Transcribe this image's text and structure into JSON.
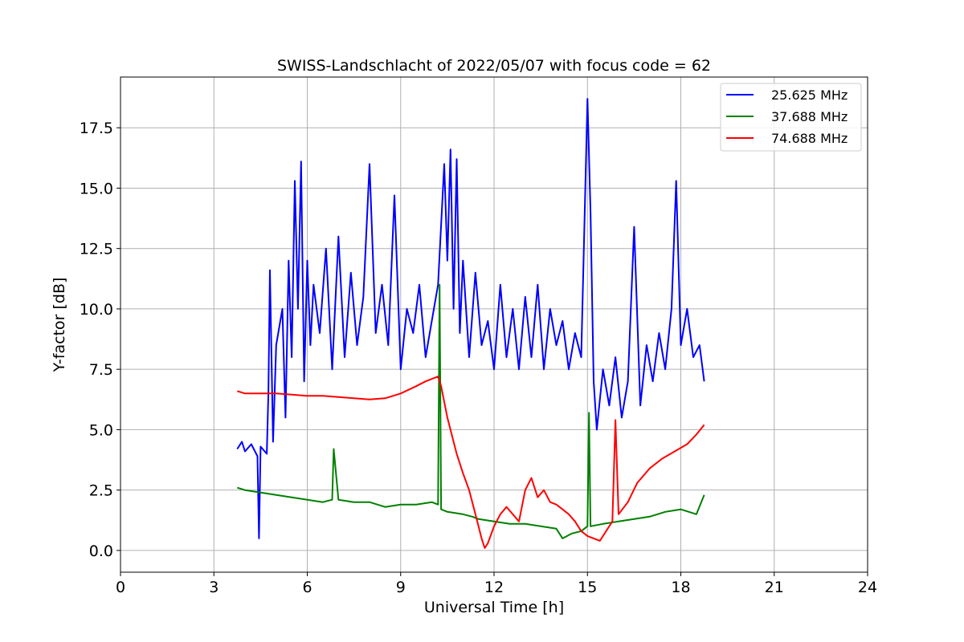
{
  "chart_data": {
    "type": "line",
    "title": "SWISS-Landschlacht of 2022/05/07 with focus code = 62",
    "xlabel": "Universal Time [h]",
    "ylabel": "Y-factor [dB]",
    "xlim": [
      0,
      24
    ],
    "ylim": [
      -0.9,
      19.6
    ],
    "xticks": [
      0,
      3,
      6,
      9,
      12,
      15,
      18,
      21,
      24
    ],
    "xtick_labels": [
      "0",
      "3",
      "6",
      "9",
      "12",
      "15",
      "18",
      "21",
      "24"
    ],
    "yticks": [
      0,
      2.5,
      5,
      7.5,
      10,
      12.5,
      15,
      17.5
    ],
    "ytick_labels": [
      "0.0",
      "2.5",
      "5.0",
      "7.5",
      "10.0",
      "12.5",
      "15.0",
      "17.5"
    ],
    "grid": true,
    "legend_position": "top-right",
    "series": [
      {
        "name": "25.625 MHz",
        "color": "#0000ff",
        "x": [
          3.75,
          3.9,
          4.0,
          4.2,
          4.4,
          4.45,
          4.5,
          4.7,
          4.75,
          4.8,
          4.9,
          5.0,
          5.2,
          5.3,
          5.4,
          5.5,
          5.6,
          5.7,
          5.8,
          5.9,
          6.0,
          6.1,
          6.2,
          6.4,
          6.6,
          6.8,
          7.0,
          7.2,
          7.4,
          7.6,
          7.8,
          8.0,
          8.2,
          8.4,
          8.6,
          8.8,
          9.0,
          9.2,
          9.4,
          9.6,
          9.8,
          10.0,
          10.2,
          10.4,
          10.5,
          10.6,
          10.7,
          10.8,
          10.9,
          11.0,
          11.2,
          11.4,
          11.6,
          11.8,
          12.0,
          12.2,
          12.4,
          12.6,
          12.8,
          13.0,
          13.2,
          13.4,
          13.6,
          13.8,
          14.0,
          14.2,
          14.4,
          14.6,
          14.8,
          15.0,
          15.1,
          15.2,
          15.3,
          15.5,
          15.7,
          15.9,
          16.1,
          16.3,
          16.5,
          16.7,
          16.9,
          17.1,
          17.3,
          17.5,
          17.7,
          17.85,
          18.0,
          18.2,
          18.4,
          18.6,
          18.75
        ],
        "y": [
          4.2,
          4.5,
          4.1,
          4.4,
          3.9,
          0.5,
          4.3,
          4.0,
          6.5,
          11.6,
          4.5,
          8.5,
          10.0,
          5.5,
          12.0,
          8.0,
          15.3,
          10.0,
          16.1,
          7.0,
          12.0,
          8.5,
          11.0,
          9.0,
          12.5,
          7.5,
          13.0,
          8.0,
          11.5,
          8.5,
          10.5,
          16.0,
          9.0,
          11.0,
          8.5,
          14.7,
          7.5,
          10.0,
          9.0,
          11.0,
          8.0,
          9.5,
          11.0,
          16.0,
          12.0,
          16.6,
          10.0,
          16.2,
          9.0,
          12.0,
          8.0,
          11.5,
          8.5,
          9.5,
          7.5,
          11.0,
          8.0,
          10.0,
          7.5,
          10.5,
          8.0,
          11.0,
          7.5,
          10.0,
          8.5,
          9.5,
          7.5,
          9.0,
          8.0,
          18.7,
          14.0,
          7.0,
          5.0,
          7.5,
          6.0,
          8.0,
          5.5,
          7.0,
          13.4,
          6.0,
          8.5,
          7.0,
          9.0,
          7.5,
          10.0,
          15.3,
          8.5,
          10.0,
          8.0,
          8.5,
          7.0
        ]
      },
      {
        "name": "37.688 MHz",
        "color": "#008000",
        "x": [
          3.75,
          4.0,
          4.5,
          5.0,
          5.5,
          6.0,
          6.5,
          6.8,
          6.85,
          7.0,
          7.5,
          8.0,
          8.5,
          9.0,
          9.5,
          10.0,
          10.2,
          10.25,
          10.3,
          10.5,
          11.0,
          11.3,
          11.5,
          12.0,
          12.5,
          13.0,
          13.5,
          14.0,
          14.2,
          14.5,
          14.8,
          15.0,
          15.05,
          15.1,
          15.5,
          16.0,
          16.5,
          17.0,
          17.5,
          18.0,
          18.5,
          18.75
        ],
        "y": [
          2.6,
          2.5,
          2.4,
          2.3,
          2.2,
          2.1,
          2.0,
          2.1,
          4.2,
          2.1,
          2.0,
          2.0,
          1.8,
          1.9,
          1.9,
          2.0,
          1.9,
          11.0,
          1.7,
          1.6,
          1.5,
          1.4,
          1.3,
          1.2,
          1.1,
          1.1,
          1.0,
          0.9,
          0.5,
          0.7,
          0.8,
          1.0,
          5.7,
          1.0,
          1.1,
          1.2,
          1.3,
          1.4,
          1.6,
          1.7,
          1.5,
          2.3
        ]
      },
      {
        "name": "74.688 MHz",
        "color": "#ff0000",
        "x": [
          3.75,
          4.0,
          4.5,
          5.0,
          5.5,
          6.0,
          6.5,
          7.0,
          7.5,
          8.0,
          8.5,
          9.0,
          9.5,
          9.8,
          10.0,
          10.2,
          10.3,
          10.5,
          10.8,
          11.0,
          11.2,
          11.4,
          11.6,
          11.7,
          11.8,
          12.0,
          12.2,
          12.4,
          12.6,
          12.8,
          13.0,
          13.2,
          13.4,
          13.6,
          13.8,
          14.0,
          14.2,
          14.4,
          14.6,
          14.8,
          15.0,
          15.2,
          15.4,
          15.6,
          15.8,
          15.9,
          16.0,
          16.3,
          16.6,
          17.0,
          17.4,
          17.8,
          18.2,
          18.5,
          18.75
        ],
        "y": [
          6.6,
          6.5,
          6.5,
          6.5,
          6.45,
          6.4,
          6.4,
          6.35,
          6.3,
          6.25,
          6.3,
          6.5,
          6.8,
          7.0,
          7.1,
          7.2,
          6.8,
          5.5,
          4.0,
          3.2,
          2.5,
          1.5,
          0.5,
          0.1,
          0.3,
          1.0,
          1.5,
          1.8,
          1.5,
          1.2,
          2.5,
          3.0,
          2.2,
          2.5,
          2.0,
          1.9,
          1.7,
          1.5,
          1.2,
          0.8,
          0.6,
          0.5,
          0.4,
          0.8,
          1.2,
          5.4,
          1.5,
          2.0,
          2.8,
          3.4,
          3.8,
          4.1,
          4.4,
          4.8,
          5.2
        ]
      }
    ]
  }
}
